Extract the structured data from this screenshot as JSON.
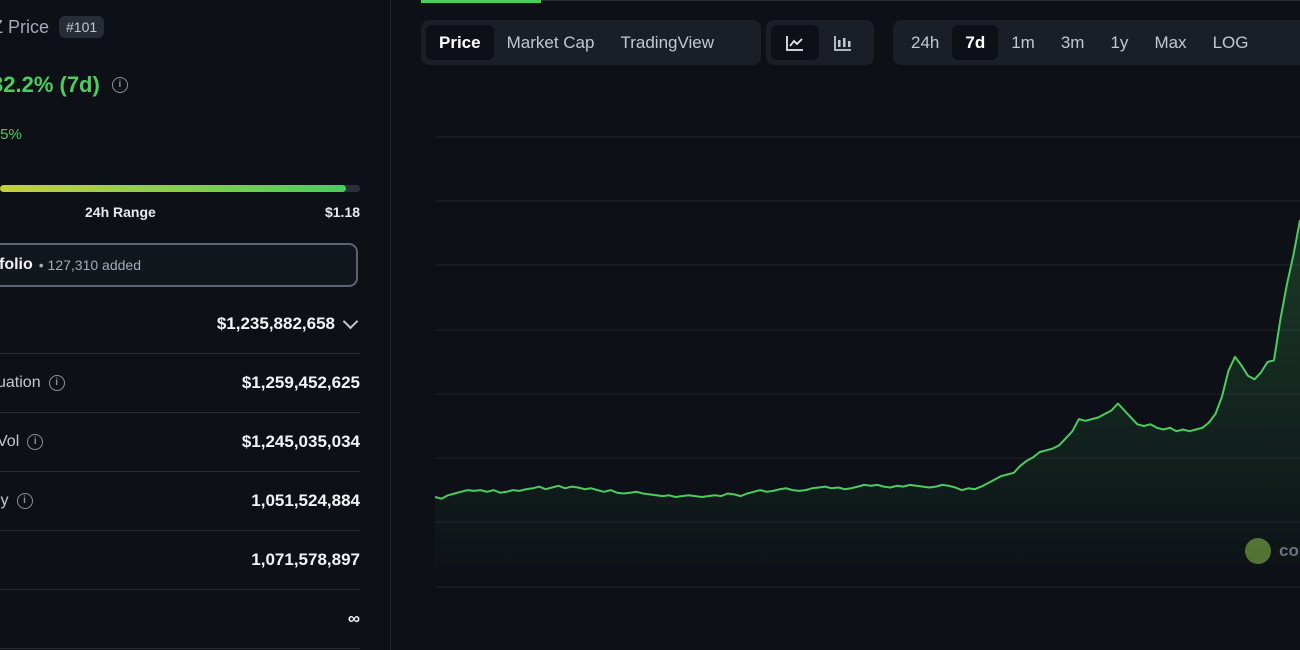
{
  "left": {
    "title": "Z Price",
    "rank": "#101",
    "change_7d": "32.2% (7d)",
    "sub_change": ".5%",
    "range_fill": 0.96,
    "range_label": "24h Range",
    "range_high": "$1.18",
    "portfolio_text": "folio",
    "portfolio_count": "• 127,310 added",
    "stats": [
      {
        "label": "",
        "value": "$1,235,882,658"
      },
      {
        "label": "uation",
        "value": "$1,259,452,625"
      },
      {
        "label": "Vol",
        "value": "$1,245,035,034"
      },
      {
        "label": "ly",
        "value": "1,051,524,884"
      },
      {
        "label": "",
        "value": "1,071,578,897"
      },
      {
        "label": "",
        "value": "∞"
      }
    ]
  },
  "toolbar": {
    "views": [
      "Price",
      "Market Cap",
      "TradingView"
    ],
    "active_view": "Price",
    "chart_icons": [
      "line-chart-icon",
      "candlestick-chart-icon"
    ],
    "ranges": [
      "24h",
      "7d",
      "1m",
      "3m",
      "1y",
      "Max",
      "LOG"
    ],
    "active_range": "7d"
  },
  "watermark": "co",
  "chart_data": {
    "type": "area",
    "line_color": "#4bcc5f",
    "grid": true,
    "values": [
      0.52,
      0.51,
      0.53,
      0.54,
      0.55,
      0.56,
      0.555,
      0.56,
      0.55,
      0.56,
      0.545,
      0.55,
      0.56,
      0.555,
      0.565,
      0.57,
      0.58,
      0.565,
      0.575,
      0.585,
      0.57,
      0.58,
      0.575,
      0.565,
      0.57,
      0.56,
      0.55,
      0.56,
      0.545,
      0.54,
      0.545,
      0.55,
      0.54,
      0.535,
      0.53,
      0.525,
      0.53,
      0.52,
      0.525,
      0.53,
      0.525,
      0.52,
      0.525,
      0.53,
      0.525,
      0.54,
      0.535,
      0.525,
      0.54,
      0.55,
      0.56,
      0.55,
      0.555,
      0.565,
      0.57,
      0.56,
      0.555,
      0.56,
      0.57,
      0.575,
      0.58,
      0.57,
      0.575,
      0.565,
      0.57,
      0.58,
      0.59,
      0.585,
      0.59,
      0.58,
      0.575,
      0.585,
      0.58,
      0.59,
      0.585,
      0.58,
      0.575,
      0.58,
      0.59,
      0.585,
      0.575,
      0.56,
      0.57,
      0.565,
      0.58,
      0.6,
      0.62,
      0.64,
      0.65,
      0.66,
      0.7,
      0.73,
      0.75,
      0.78,
      0.79,
      0.8,
      0.82,
      0.86,
      0.9,
      0.97,
      0.96,
      0.97,
      0.98,
      1.0,
      1.02,
      1.06,
      1.02,
      0.98,
      0.94,
      0.93,
      0.94,
      0.92,
      0.91,
      0.92,
      0.9,
      0.91,
      0.9,
      0.91,
      0.92,
      0.95,
      1.0,
      1.1,
      1.25,
      1.33,
      1.28,
      1.22,
      1.2,
      1.24,
      1.3,
      1.31,
      1.55,
      1.75,
      1.92,
      2.12
    ],
    "ylim": [
      0.0,
      2.6
    ]
  }
}
